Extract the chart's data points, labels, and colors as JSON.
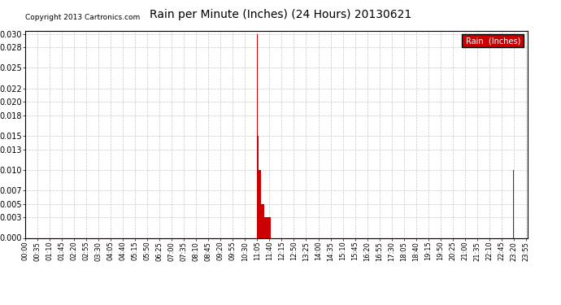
{
  "title": "Rain per Minute (Inches) (24 Hours) 20130621",
  "copyright_text": "Copyright 2013 Cartronics.com",
  "legend_label": "Rain  (Inches)",
  "legend_bg": "#cc0000",
  "legend_text_color": "#ffffff",
  "bar_color": "#cc0000",
  "background_color": "#ffffff",
  "grid_color": "#c8c8c8",
  "ylim": [
    0.0,
    0.0305
  ],
  "yticks": [
    0.0,
    0.003,
    0.005,
    0.007,
    0.01,
    0.013,
    0.015,
    0.018,
    0.02,
    0.022,
    0.025,
    0.028,
    0.03
  ],
  "total_minutes": 1440,
  "rain_events": [
    {
      "minute": 665,
      "value": 0.03
    },
    {
      "minute": 666,
      "value": 0.02
    },
    {
      "minute": 667,
      "value": 0.015
    },
    {
      "minute": 668,
      "value": 0.013
    },
    {
      "minute": 669,
      "value": 0.01
    },
    {
      "minute": 670,
      "value": 0.01
    },
    {
      "minute": 671,
      "value": 0.01
    },
    {
      "minute": 672,
      "value": 0.01
    },
    {
      "minute": 673,
      "value": 0.01
    },
    {
      "minute": 674,
      "value": 0.01
    },
    {
      "minute": 675,
      "value": 0.01
    },
    {
      "minute": 676,
      "value": 0.005
    },
    {
      "minute": 677,
      "value": 0.005
    },
    {
      "minute": 678,
      "value": 0.005
    },
    {
      "minute": 679,
      "value": 0.005
    },
    {
      "minute": 680,
      "value": 0.005
    },
    {
      "minute": 681,
      "value": 0.005
    },
    {
      "minute": 682,
      "value": 0.005
    },
    {
      "minute": 683,
      "value": 0.005
    },
    {
      "minute": 684,
      "value": 0.005
    },
    {
      "minute": 685,
      "value": 0.003
    },
    {
      "minute": 686,
      "value": 0.003
    },
    {
      "minute": 687,
      "value": 0.003
    },
    {
      "minute": 688,
      "value": 0.003
    },
    {
      "minute": 689,
      "value": 0.003
    },
    {
      "minute": 690,
      "value": 0.003
    },
    {
      "minute": 691,
      "value": 0.003
    },
    {
      "minute": 692,
      "value": 0.003
    },
    {
      "minute": 693,
      "value": 0.003
    },
    {
      "minute": 694,
      "value": 0.003
    },
    {
      "minute": 695,
      "value": 0.003
    },
    {
      "minute": 696,
      "value": 0.003
    },
    {
      "minute": 697,
      "value": 0.003
    },
    {
      "minute": 698,
      "value": 0.003
    },
    {
      "minute": 699,
      "value": 0.003
    },
    {
      "minute": 700,
      "value": 0.003
    },
    {
      "minute": 701,
      "value": 0.003
    },
    {
      "minute": 702,
      "value": 0.003
    },
    {
      "minute": 703,
      "value": 0.003
    },
    {
      "minute": 704,
      "value": 0.003
    },
    {
      "minute": 1400,
      "value": 0.01
    }
  ],
  "xtick_labels": [
    "00:00",
    "00:35",
    "01:10",
    "01:45",
    "02:20",
    "02:55",
    "03:30",
    "04:05",
    "04:40",
    "05:15",
    "05:50",
    "06:25",
    "07:00",
    "07:35",
    "08:10",
    "08:45",
    "09:20",
    "09:55",
    "10:30",
    "11:05",
    "11:40",
    "12:15",
    "12:50",
    "13:25",
    "14:00",
    "14:35",
    "15:10",
    "15:45",
    "16:20",
    "16:55",
    "17:30",
    "18:05",
    "18:40",
    "19:15",
    "19:50",
    "20:25",
    "21:00",
    "21:35",
    "22:10",
    "22:45",
    "23:20",
    "23:55"
  ]
}
